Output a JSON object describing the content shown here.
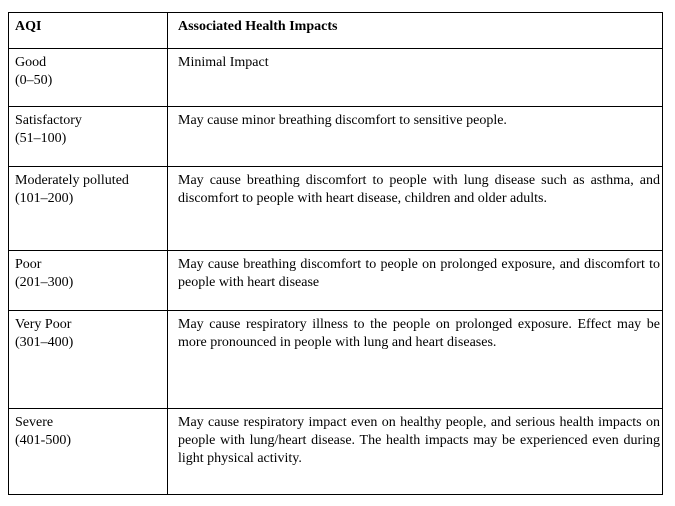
{
  "table": {
    "headers": [
      "AQI",
      "Associated Health Impacts"
    ],
    "rows": [
      {
        "category": "Good",
        "range": "(0–50)",
        "impact": "Minimal Impact"
      },
      {
        "category": "Satisfactory",
        "range": "(51–100)",
        "impact": "May cause minor breathing discomfort to sensitive people."
      },
      {
        "category": "Moderately polluted",
        "range": "(101–200)",
        "impact": "May cause breathing discomfort to people with lung disease such as asthma, and discomfort to people with heart disease, children and older adults."
      },
      {
        "category": "Poor",
        "range": "(201–300)",
        "impact": "May cause breathing discomfort to people on prolonged exposure, and discomfort to people with heart disease"
      },
      {
        "category": "Very Poor",
        "range": "(301–400)",
        "impact": "May cause respiratory illness to the people on prolonged exposure. Effect may be more pronounced in people with lung and heart diseases."
      },
      {
        "category": "Severe",
        "range": "(401-500)",
        "impact": "May cause respiratory impact even on healthy people, and serious health impacts on people with lung/heart disease. The health impacts may be experienced even during light physical activity."
      }
    ]
  }
}
